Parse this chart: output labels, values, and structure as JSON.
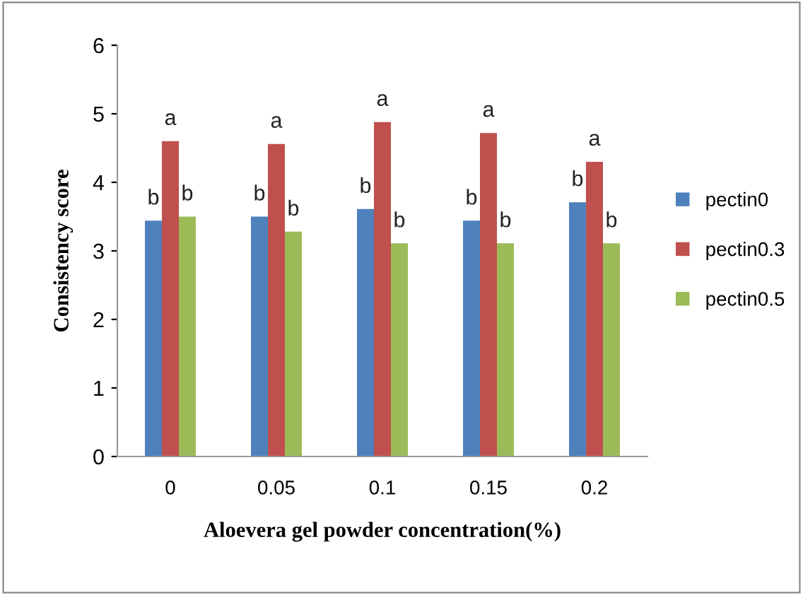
{
  "chart_data": {
    "type": "bar",
    "xlabel": "Aloevera gel powder concentration(%)",
    "ylabel": "Consistency score",
    "categories": [
      "0",
      "0.05",
      "0.1",
      "0.15",
      "0.2"
    ],
    "series": [
      {
        "name": "pectin0",
        "color": "#4f81bd",
        "values": [
          3.44,
          3.5,
          3.61,
          3.44,
          3.71
        ]
      },
      {
        "name": "pectin0.3",
        "color": "#c0504d",
        "values": [
          4.6,
          4.56,
          4.88,
          4.72,
          4.3
        ]
      },
      {
        "name": "pectin0.5",
        "color": "#9bbb59",
        "values": [
          3.5,
          3.28,
          3.11,
          3.11,
          3.11
        ]
      }
    ],
    "ylim": [
      0,
      6
    ],
    "yticks": [
      0,
      1,
      2,
      3,
      4,
      5,
      6
    ],
    "grid": false,
    "legend": "right",
    "annotations": [
      "b",
      "b",
      "b",
      "b",
      "b",
      "a",
      "a",
      "a",
      "a",
      "a",
      "b",
      "b",
      "b",
      "b",
      "b"
    ]
  }
}
